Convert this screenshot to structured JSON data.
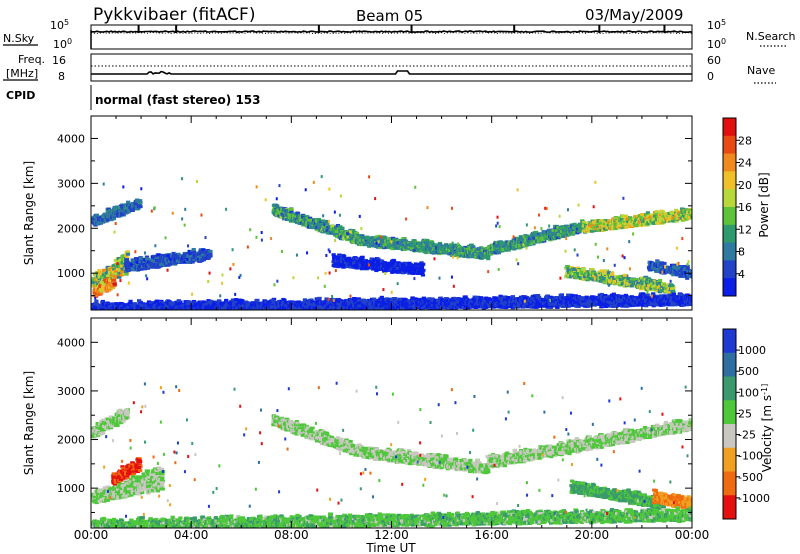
{
  "header": {
    "station": "Pykkvibaer (fitACF)",
    "beam": "Beam 05",
    "date": "03/May/2009"
  },
  "noise_panel": {
    "left_label": "N.Sky",
    "right_label": "N.Search",
    "left_ticks": [
      "10^5",
      "10^0"
    ],
    "right_ticks": [
      "10^5",
      "10^0"
    ]
  },
  "freq_panel": {
    "left_label_line1": "Freq.",
    "left_label_line2": "[MHz]",
    "left_ticks": [
      "16",
      "8"
    ],
    "right_label": "Nave",
    "right_ticks": [
      "60",
      "0"
    ]
  },
  "cpid": {
    "label": "CPID",
    "value": "normal (fast stereo) 153"
  },
  "colors": {
    "background": "#ffffff",
    "ground_scatter": "#c8c8c0"
  },
  "chart_data": [
    {
      "type": "heatmap",
      "panel": "power",
      "xlabel": "",
      "ylabel": "Slant Range [km]",
      "x_range_hours": [
        0,
        24
      ],
      "ylim": [
        180,
        4500
      ],
      "yticks": [
        1000,
        2000,
        3000,
        4000
      ],
      "colorbar": {
        "label": "Power [dB]",
        "ticks": [
          "4",
          "8",
          "12",
          "16",
          "20",
          "24",
          "28"
        ],
        "colors": [
          "#0a1ee6",
          "#2242c8",
          "#2e7aa0",
          "#2e9a6e",
          "#5ec23a",
          "#b8d83a",
          "#f0c028",
          "#f08a1e",
          "#e84a14",
          "#e01010"
        ]
      },
      "bands": [
        {
          "t0": 0.0,
          "t1": 1.9,
          "r0": 2130,
          "r1": 2550,
          "c0": 0.12,
          "c1": 0.32
        },
        {
          "t0": 0.0,
          "t1": 1.4,
          "r0": 780,
          "r1": 1160,
          "c0": 0.24,
          "c1": 0.78,
          "dr1": 260
        },
        {
          "t0": 0.05,
          "t1": 0.9,
          "r0": 560,
          "r1": 820,
          "c0": 0.48,
          "c1": 0.92
        },
        {
          "t0": 1.3,
          "t1": 4.7,
          "r0": 1130,
          "r1": 1410,
          "c0": 0.06,
          "c1": 0.26
        },
        {
          "t0": 7.2,
          "t1": 10.6,
          "r0": 2380,
          "r1": 1730,
          "c0": 0.16,
          "c1": 0.52
        },
        {
          "t0": 10.6,
          "t1": 15.8,
          "r0": 1720,
          "r1": 1400,
          "c0": 0.18,
          "c1": 0.46
        },
        {
          "t0": 9.6,
          "t1": 13.2,
          "r0": 1250,
          "r1": 1050,
          "c0": 0.02,
          "c1": 0.12
        },
        {
          "t0": 15.8,
          "t1": 19.6,
          "r0": 1500,
          "r1": 2020,
          "c0": 0.18,
          "c1": 0.48
        },
        {
          "t0": 19.6,
          "t1": 24.0,
          "r0": 2000,
          "r1": 2300,
          "c0": 0.32,
          "c1": 0.74
        },
        {
          "t0": 18.9,
          "t1": 23.2,
          "r0": 1010,
          "r1": 630,
          "c0": 0.2,
          "c1": 0.66
        },
        {
          "t0": 22.2,
          "t1": 24.0,
          "r0": 1150,
          "r1": 950,
          "c0": 0.08,
          "c1": 0.3
        },
        {
          "t0": 0.0,
          "t1": 24.0,
          "r0": 200,
          "r1": 380,
          "c0": 0.02,
          "c1": 0.18
        }
      ]
    },
    {
      "type": "heatmap",
      "panel": "velocity",
      "xlabel": "Time UT",
      "ylabel": "Slant Range [km]",
      "x_range_hours": [
        0,
        24
      ],
      "xticks": [
        "00:00",
        "04:00",
        "08:00",
        "12:00",
        "16:00",
        "20:00",
        "00:00"
      ],
      "ylim": [
        180,
        4500
      ],
      "yticks": [
        1000,
        2000,
        3000,
        4000
      ],
      "colorbar": {
        "label": "Velocity [m s^-1]",
        "ticks": [
          "1000",
          "500",
          "100",
          "25",
          "-25",
          "-100",
          "-500",
          "-1000"
        ],
        "colors": [
          "#1e3ad2",
          "#2e6ea0",
          "#3a9a6e",
          "#4ec83a",
          "#c8c8c0",
          "#f0a020",
          "#f06a10",
          "#e41010"
        ]
      },
      "bands": [
        {
          "t0": 0.0,
          "t1": 1.4,
          "r0": 2130,
          "r1": 2530,
          "c0": 0.48,
          "c1": 0.52
        },
        {
          "t0": 0.0,
          "t1": 2.8,
          "r0": 780,
          "r1": 1120,
          "c0": 0.48,
          "c1": 0.52,
          "dr1": 250
        },
        {
          "t0": 0.8,
          "t1": 1.9,
          "r0": 1160,
          "r1": 1480,
          "c0": 0.8,
          "c1": 0.98
        },
        {
          "t0": 7.2,
          "t1": 10.6,
          "r0": 2380,
          "r1": 1730,
          "c0": 0.48,
          "c1": 0.52
        },
        {
          "t0": 10.6,
          "t1": 15.8,
          "r0": 1720,
          "r1": 1380,
          "c0": 0.48,
          "c1": 0.52
        },
        {
          "t0": 15.8,
          "t1": 24.0,
          "r0": 1500,
          "r1": 2300,
          "c0": 0.48,
          "c1": 0.52
        },
        {
          "t0": 19.1,
          "t1": 22.8,
          "r0": 1000,
          "r1": 650,
          "c0": 0.26,
          "c1": 0.44
        },
        {
          "t0": 22.4,
          "t1": 24.0,
          "r0": 800,
          "r1": 620,
          "c0": 0.66,
          "c1": 0.84
        },
        {
          "t0": 0.0,
          "t1": 24.0,
          "r0": 200,
          "r1": 420,
          "c0": 0.32,
          "c1": 0.52
        }
      ]
    }
  ]
}
